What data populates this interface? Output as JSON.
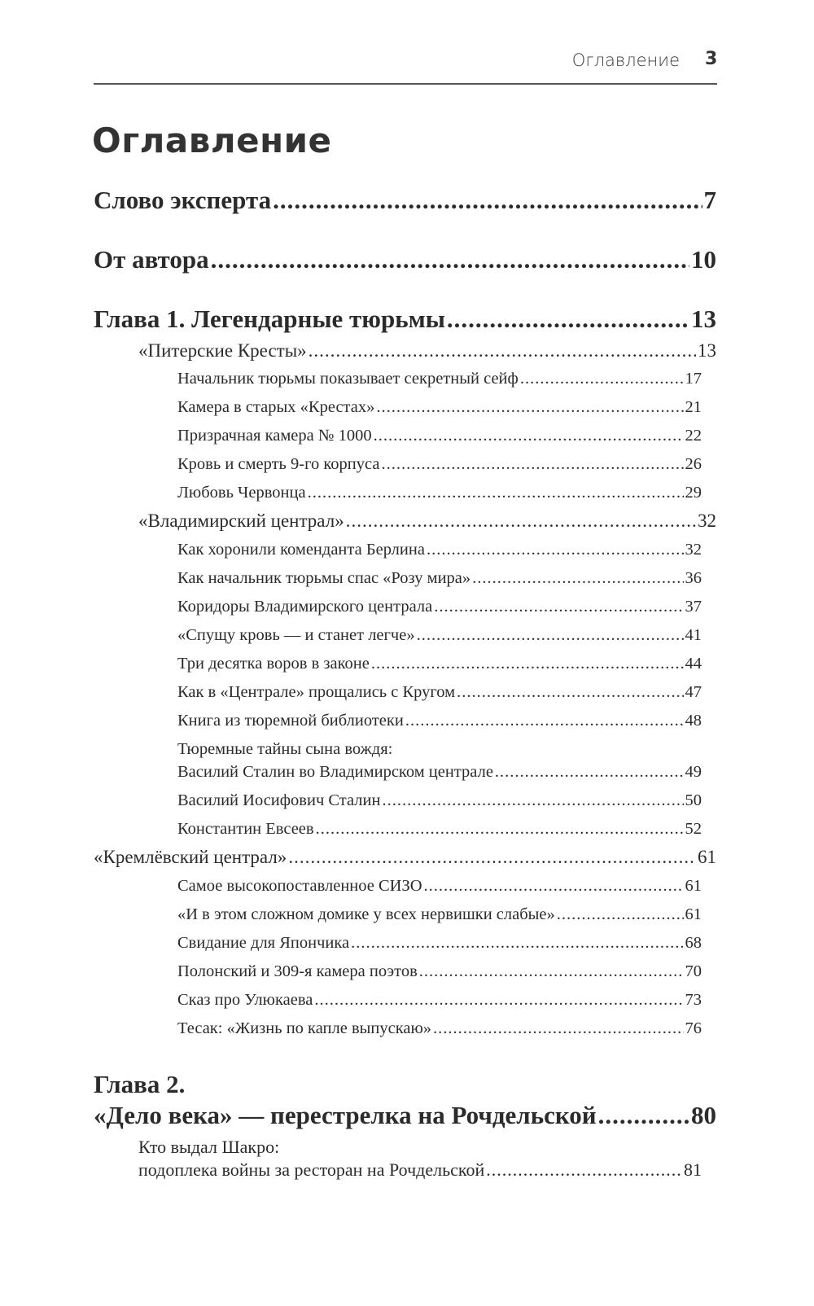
{
  "running_header": {
    "title": "Оглавление",
    "page_number": "3"
  },
  "page_title": "Оглавление",
  "toc": [
    {
      "level": 0,
      "title": "Слово эксперта",
      "page": "7"
    },
    {
      "level": 0,
      "title": "От автора",
      "page": "10"
    },
    {
      "level": 0,
      "title": "Глава 1. Легендарные тюрьмы",
      "page": "13"
    },
    {
      "level": 1,
      "title": "«Питерские Кресты»",
      "page": "13"
    },
    {
      "level": 2,
      "title": "Начальник тюрьмы показывает секретный сейф",
      "page": "17"
    },
    {
      "level": 2,
      "title": "Камера в старых «Крестах»",
      "page": "21"
    },
    {
      "level": 2,
      "title": "Призрачная камера № 1000",
      "page": "22"
    },
    {
      "level": 2,
      "title": "Кровь и смерть 9-го корпуса",
      "page": "26"
    },
    {
      "level": 2,
      "title": "Любовь Червонца",
      "page": "29"
    },
    {
      "level": 1,
      "title": "«Владимирский централ»",
      "page": "32"
    },
    {
      "level": 2,
      "title": "Как хоронили коменданта Берлина",
      "page": "32"
    },
    {
      "level": 2,
      "title": "Как начальник тюрьмы спас «Розу мира»",
      "page": "36"
    },
    {
      "level": 2,
      "title": "Коридоры Владимирского централа",
      "page": "37"
    },
    {
      "level": 2,
      "title": "«Спущу кровь — и станет легче»",
      "page": "41"
    },
    {
      "level": 2,
      "title": "Три десятка воров в законе",
      "page": "44"
    },
    {
      "level": 2,
      "title": "Как в «Централе» прощались с Кругом",
      "page": "47"
    },
    {
      "level": 2,
      "title": "Книга из тюремной библиотеки",
      "page": "48"
    },
    {
      "level": 2,
      "title_line1": "Тюремные тайны сына вождя:",
      "title": "Василий Сталин во Владимирском централе",
      "page": "49"
    },
    {
      "level": 2,
      "title": "Василий Иосифович Сталин",
      "page": "50"
    },
    {
      "level": 2,
      "title": "Константин Евсеев",
      "page": "52"
    },
    {
      "level": 1,
      "title": "«Кремлёвский централ»",
      "page": "61"
    },
    {
      "level": 2,
      "title": "Самое высокопоставленное СИЗО",
      "page": "61"
    },
    {
      "level": 2,
      "title": "«И в этом сложном домике у всех нервишки слабые»",
      "page": "61"
    },
    {
      "level": 2,
      "title": "Свидание для Япончика",
      "page": "68"
    },
    {
      "level": 2,
      "title": "Полонский и 309-я камера поэтов",
      "page": "70"
    },
    {
      "level": 2,
      "title": "Сказ про Улюкаева",
      "page": "73"
    },
    {
      "level": 2,
      "title": "Тесак: «Жизнь по капле выпускаю»",
      "page": "76"
    },
    {
      "level": 0,
      "title_line1": "Глава 2.",
      "title": "«Дело века» — перестрелка на Рочдельской",
      "page": "80"
    },
    {
      "level": 1,
      "title_line1": "Кто выдал Шакро:",
      "title": "подоплека войны за ресторан на Рочдельской",
      "page": "81"
    }
  ]
}
